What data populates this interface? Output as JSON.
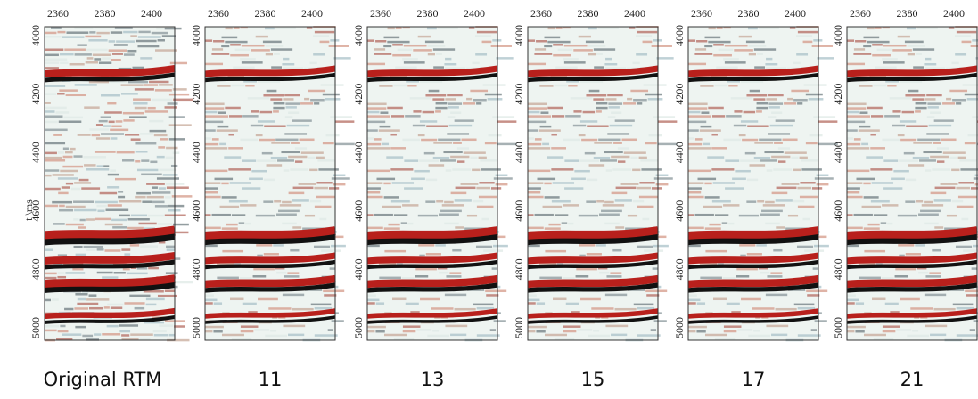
{
  "figure": {
    "y_axis_label": "t \\ms",
    "x_ticks": [
      2360,
      2380,
      2400
    ],
    "y_ticks": [
      4000,
      4200,
      4400,
      4600,
      4800,
      5000
    ],
    "panels": [
      {
        "caption": "Original RTM"
      },
      {
        "caption": "11"
      },
      {
        "caption": "13"
      },
      {
        "caption": "15"
      },
      {
        "caption": "17"
      },
      {
        "caption": "21"
      }
    ]
  }
}
